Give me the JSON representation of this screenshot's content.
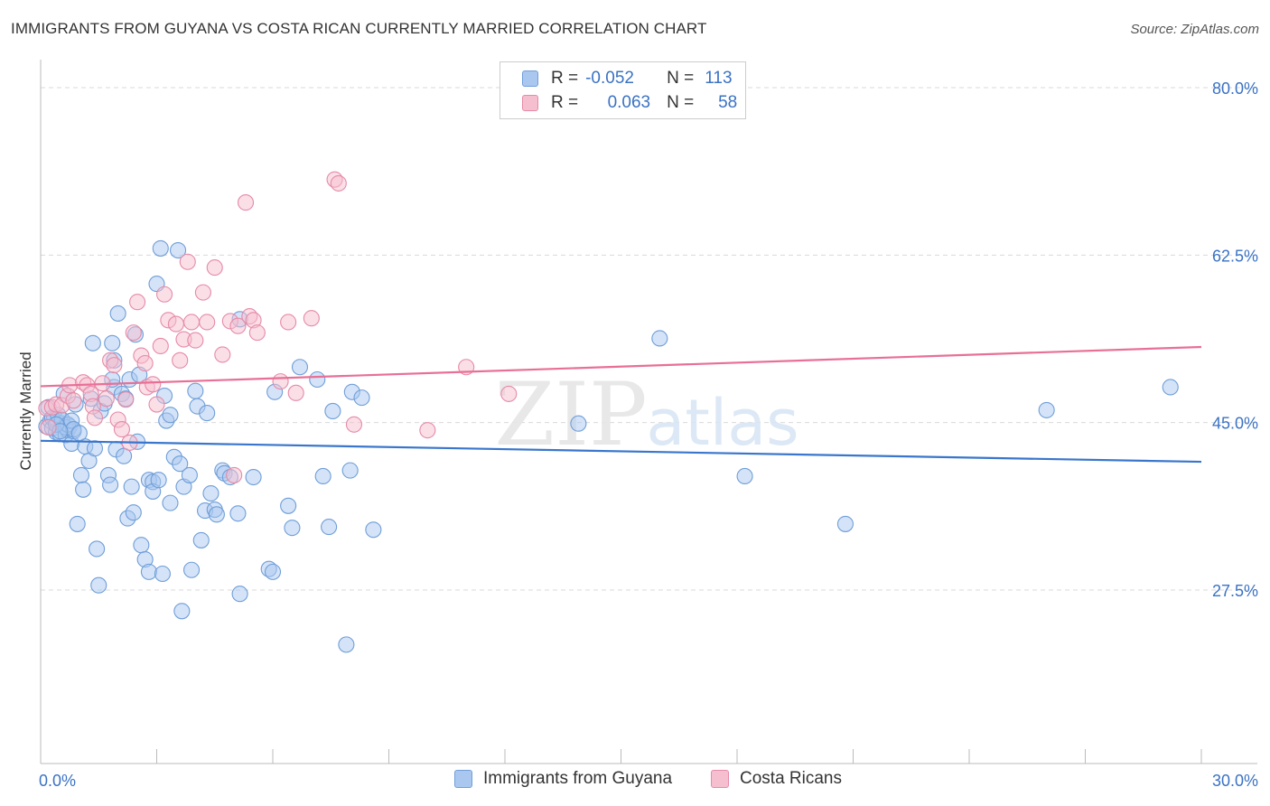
{
  "header": {
    "title": "IMMIGRANTS FROM GUYANA VS COSTA RICAN CURRENTLY MARRIED CORRELATION CHART",
    "source": "Source: ZipAtlas.com"
  },
  "legend": {
    "series1": {
      "r_label": "R =",
      "r_value": "-0.052",
      "n_label": "N =",
      "n_value": "113"
    },
    "series2": {
      "r_label": "R =",
      "r_value": "0.063",
      "n_label": "N =",
      "n_value": "58"
    }
  },
  "colors": {
    "blue_fill": "#aac8ef",
    "blue_stroke": "#6f9ed8",
    "blue_line": "#3a76cc",
    "pink_fill": "#f5bfd0",
    "pink_stroke": "#e68aa8",
    "pink_line": "#e87096",
    "axis_label": "#3a72c4",
    "grid": "#d9d9d9"
  },
  "watermark": {
    "zip": "ZIP",
    "atlas": "atlas"
  },
  "chart_data": {
    "type": "scatter",
    "title": "IMMIGRANTS FROM GUYANA VS COSTA RICAN CURRENTLY MARRIED CORRELATION CHART",
    "xlabel": "",
    "ylabel": "Currently Married",
    "xlim": [
      0,
      30
    ],
    "ylim": [
      10,
      82
    ],
    "x_tick_labels": [
      "0.0%",
      "30.0%"
    ],
    "y_ticks": [
      80.0,
      62.5,
      45.0,
      27.5
    ],
    "y_tick_labels": [
      "80.0%",
      "62.5%",
      "45.0%",
      "27.5%"
    ],
    "legend_position": "top-center",
    "series": [
      {
        "name": "Immigrants from Guyana",
        "r": -0.052,
        "n": 113,
        "trend": {
          "x": [
            0,
            30
          ],
          "y": [
            43.1,
            40.9
          ]
        },
        "points": [
          [
            0.15,
            44.6
          ],
          [
            0.2,
            46.6
          ],
          [
            0.25,
            45.2
          ],
          [
            0.3,
            44.4
          ],
          [
            0.35,
            45.6
          ],
          [
            0.4,
            44.0
          ],
          [
            0.45,
            45.0
          ],
          [
            0.5,
            43.8
          ],
          [
            0.55,
            44.9
          ],
          [
            0.6,
            48.0
          ],
          [
            0.65,
            43.7
          ],
          [
            0.7,
            44.2
          ],
          [
            0.75,
            44.6
          ],
          [
            0.8,
            42.8
          ],
          [
            0.85,
            44.1
          ],
          [
            0.9,
            46.9
          ],
          [
            0.95,
            34.4
          ],
          [
            1.05,
            39.5
          ],
          [
            1.1,
            38.0
          ],
          [
            1.15,
            42.5
          ],
          [
            1.25,
            41.0
          ],
          [
            1.3,
            47.5
          ],
          [
            1.35,
            53.3
          ],
          [
            1.4,
            42.3
          ],
          [
            1.45,
            31.8
          ],
          [
            1.5,
            28.0
          ],
          [
            1.55,
            46.2
          ],
          [
            1.65,
            47.0
          ],
          [
            1.75,
            39.5
          ],
          [
            1.8,
            38.5
          ],
          [
            1.85,
            53.3
          ],
          [
            1.9,
            51.5
          ],
          [
            1.9,
            48.7
          ],
          [
            1.85,
            49.5
          ],
          [
            1.95,
            42.2
          ],
          [
            2.0,
            56.4
          ],
          [
            2.1,
            48.0
          ],
          [
            2.15,
            41.5
          ],
          [
            2.2,
            47.5
          ],
          [
            2.25,
            35.0
          ],
          [
            2.3,
            49.5
          ],
          [
            2.35,
            38.3
          ],
          [
            2.4,
            35.6
          ],
          [
            2.45,
            54.2
          ],
          [
            2.5,
            43.0
          ],
          [
            2.55,
            50.0
          ],
          [
            2.6,
            32.2
          ],
          [
            2.7,
            30.7
          ],
          [
            2.8,
            29.4
          ],
          [
            2.8,
            39.0
          ],
          [
            2.9,
            38.8
          ],
          [
            2.9,
            37.8
          ],
          [
            3.0,
            59.5
          ],
          [
            3.05,
            39.0
          ],
          [
            3.1,
            63.2
          ],
          [
            3.15,
            29.2
          ],
          [
            3.2,
            47.8
          ],
          [
            3.25,
            45.2
          ],
          [
            3.35,
            36.6
          ],
          [
            3.35,
            45.8
          ],
          [
            3.45,
            41.4
          ],
          [
            3.55,
            63.0
          ],
          [
            3.6,
            40.7
          ],
          [
            3.65,
            25.3
          ],
          [
            3.7,
            38.3
          ],
          [
            3.85,
            39.5
          ],
          [
            3.9,
            29.6
          ],
          [
            4.0,
            48.3
          ],
          [
            4.05,
            46.7
          ],
          [
            4.15,
            32.7
          ],
          [
            4.25,
            35.8
          ],
          [
            4.3,
            46.0
          ],
          [
            4.4,
            37.6
          ],
          [
            4.5,
            35.9
          ],
          [
            4.55,
            35.4
          ],
          [
            4.7,
            40.0
          ],
          [
            4.75,
            39.7
          ],
          [
            4.9,
            39.3
          ],
          [
            5.1,
            35.5
          ],
          [
            5.15,
            27.1
          ],
          [
            5.15,
            55.8
          ],
          [
            5.5,
            39.3
          ],
          [
            5.9,
            29.7
          ],
          [
            6.0,
            29.4
          ],
          [
            6.05,
            48.2
          ],
          [
            6.4,
            36.3
          ],
          [
            6.5,
            34.0
          ],
          [
            6.7,
            50.8
          ],
          [
            7.15,
            49.5
          ],
          [
            7.3,
            39.4
          ],
          [
            7.45,
            34.1
          ],
          [
            7.55,
            46.2
          ],
          [
            7.9,
            21.8
          ],
          [
            8.0,
            40.0
          ],
          [
            8.05,
            48.2
          ],
          [
            8.3,
            47.6
          ],
          [
            8.6,
            33.8
          ],
          [
            13.9,
            44.9
          ],
          [
            16.0,
            53.8
          ],
          [
            18.2,
            39.4
          ],
          [
            20.8,
            34.4
          ],
          [
            26.0,
            46.3
          ],
          [
            29.2,
            48.7
          ],
          [
            0.3,
            45.5
          ],
          [
            0.45,
            45.8
          ],
          [
            0.55,
            45.3
          ],
          [
            0.65,
            44.5
          ],
          [
            0.7,
            44.8
          ],
          [
            0.8,
            45.2
          ],
          [
            0.85,
            44.3
          ],
          [
            1.0,
            43.9
          ],
          [
            0.4,
            44.8
          ],
          [
            0.5,
            44.1
          ]
        ]
      },
      {
        "name": "Costa Ricans",
        "r": 0.063,
        "n": 58,
        "trend": {
          "x": [
            0,
            30
          ],
          "y": [
            48.8,
            52.9
          ]
        },
        "points": [
          [
            0.15,
            46.5
          ],
          [
            0.2,
            44.5
          ],
          [
            0.3,
            46.6
          ],
          [
            0.4,
            46.9
          ],
          [
            0.55,
            46.8
          ],
          [
            0.7,
            47.8
          ],
          [
            0.75,
            48.9
          ],
          [
            0.85,
            47.3
          ],
          [
            1.1,
            49.2
          ],
          [
            1.2,
            48.9
          ],
          [
            1.3,
            48.0
          ],
          [
            1.35,
            46.7
          ],
          [
            1.4,
            45.5
          ],
          [
            1.6,
            49.1
          ],
          [
            1.7,
            47.5
          ],
          [
            1.8,
            51.5
          ],
          [
            1.9,
            51.0
          ],
          [
            2.0,
            45.3
          ],
          [
            2.1,
            44.3
          ],
          [
            2.2,
            47.4
          ],
          [
            2.3,
            42.9
          ],
          [
            2.4,
            54.4
          ],
          [
            2.5,
            57.6
          ],
          [
            2.6,
            52.0
          ],
          [
            2.7,
            51.2
          ],
          [
            2.75,
            48.7
          ],
          [
            2.9,
            49.0
          ],
          [
            3.0,
            46.9
          ],
          [
            3.1,
            53.0
          ],
          [
            3.2,
            58.4
          ],
          [
            3.3,
            55.7
          ],
          [
            3.5,
            55.3
          ],
          [
            3.6,
            51.5
          ],
          [
            3.7,
            53.7
          ],
          [
            3.8,
            61.8
          ],
          [
            3.9,
            55.5
          ],
          [
            4.0,
            53.6
          ],
          [
            4.2,
            58.6
          ],
          [
            4.3,
            55.5
          ],
          [
            4.5,
            61.2
          ],
          [
            4.7,
            52.1
          ],
          [
            4.9,
            55.6
          ],
          [
            5.0,
            39.5
          ],
          [
            5.1,
            55.1
          ],
          [
            5.3,
            68.0
          ],
          [
            5.4,
            56.1
          ],
          [
            5.5,
            55.7
          ],
          [
            5.6,
            54.4
          ],
          [
            6.2,
            49.3
          ],
          [
            6.4,
            55.5
          ],
          [
            6.6,
            48.1
          ],
          [
            7.0,
            55.9
          ],
          [
            7.6,
            70.4
          ],
          [
            7.7,
            70.0
          ],
          [
            8.1,
            44.8
          ],
          [
            10.0,
            44.2
          ],
          [
            11.0,
            50.8
          ],
          [
            12.1,
            48.0
          ]
        ]
      }
    ]
  }
}
